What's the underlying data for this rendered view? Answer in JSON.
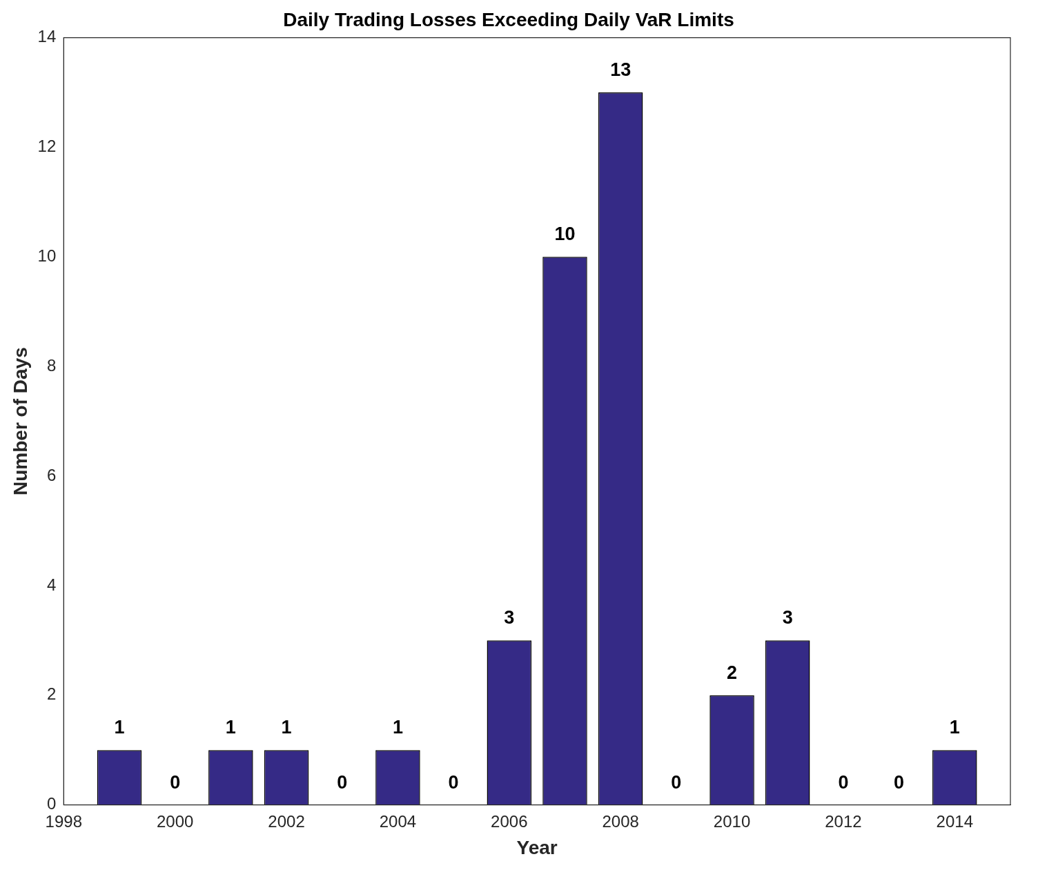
{
  "chart_data": {
    "type": "bar",
    "title": "Daily Trading Losses Exceeding Daily VaR Limits",
    "xlabel": "Year",
    "ylabel": "Number of Days",
    "x": [
      1999,
      2000,
      2001,
      2002,
      2003,
      2004,
      2005,
      2006,
      2007,
      2008,
      2009,
      2010,
      2011,
      2012,
      2013,
      2014
    ],
    "values": [
      1,
      0,
      1,
      1,
      0,
      1,
      0,
      3,
      10,
      13,
      0,
      2,
      3,
      0,
      0,
      1
    ],
    "color": "#352a86",
    "xlim": [
      1998,
      2015
    ],
    "xticks": [
      1998,
      2000,
      2002,
      2004,
      2006,
      2008,
      2010,
      2012,
      2014
    ],
    "ylim": [
      0,
      14
    ],
    "yticks": [
      0,
      2,
      4,
      6,
      8,
      10,
      12,
      14
    ],
    "data_labels": true
  }
}
